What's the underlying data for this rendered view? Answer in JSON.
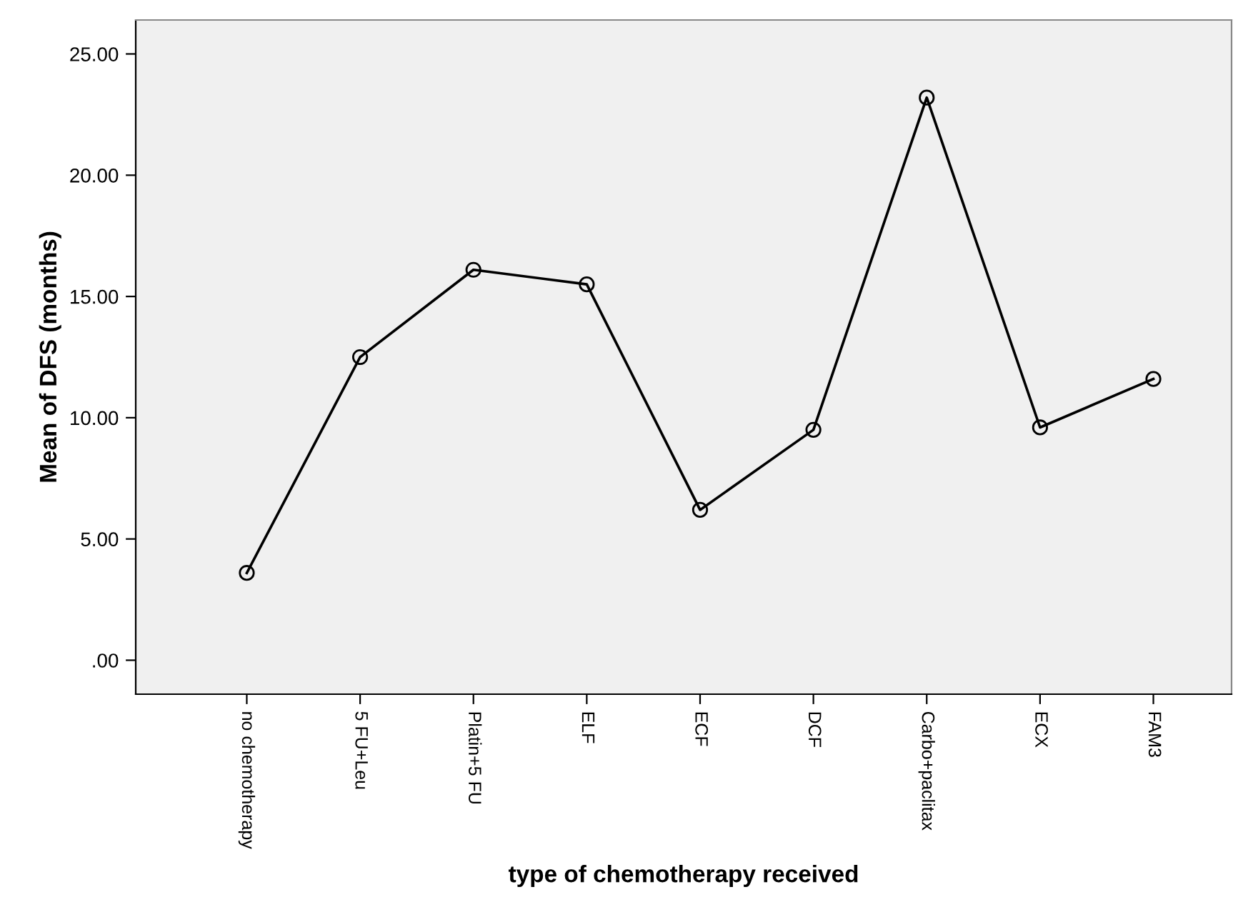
{
  "chart_data": {
    "type": "line",
    "xlabel": "type of chemotherapy received",
    "ylabel": "Mean of DFS (months)",
    "categories": [
      "no chemotherapy",
      "5 FU+Leu",
      "Platin+5 FU",
      "ELF",
      "ECF",
      "DCF",
      "Carbo+paclitax",
      "ECX",
      "FAM3"
    ],
    "series": [
      {
        "color": "#000000",
        "values": [
          3.6,
          12.5,
          16.1,
          15.5,
          6.2,
          9.5,
          23.2,
          9.6,
          11.6
        ]
      }
    ],
    "ylim": [
      -1.4,
      26.4
    ],
    "yticks": [
      {
        "value": 0,
        "label": ".00"
      },
      {
        "value": 5,
        "label": "5.00"
      },
      {
        "value": 10,
        "label": "10.00"
      },
      {
        "value": 15,
        "label": "15.00"
      },
      {
        "value": 20,
        "label": "20.00"
      },
      {
        "value": 25,
        "label": "25.00"
      }
    ],
    "marker": "circle",
    "line_style": "solid",
    "grid": false,
    "legend": false
  }
}
